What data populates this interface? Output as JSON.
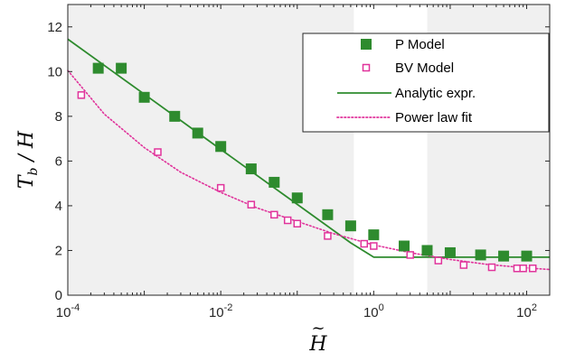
{
  "chart_data": {
    "type": "scatter",
    "xscale": "log",
    "xlim": [
      0.0001,
      200
    ],
    "ylim": [
      0,
      13
    ],
    "xlabel": "H̃",
    "ylabel": "T̃_b / H̃",
    "xlabel_display": {
      "base": "H",
      "accent": "~"
    },
    "ylabel_display": {
      "t": "T",
      "sub": "b",
      "h": "H"
    },
    "x_ticks": [
      {
        "value": 0.0001,
        "base": "10",
        "exp": "-4"
      },
      {
        "value": 0.01,
        "base": "10",
        "exp": "-2"
      },
      {
        "value": 1,
        "base": "10",
        "exp": "0"
      },
      {
        "value": 100,
        "base": "10",
        "exp": "2"
      }
    ],
    "y_ticks": [
      0,
      2,
      4,
      6,
      8,
      10,
      12
    ],
    "shaded_regions": [
      {
        "x0": 0.0001,
        "x1": 0.55,
        "color": "#f0f0f0"
      },
      {
        "x0": 5,
        "x1": 200,
        "color": "#f0f0f0"
      }
    ],
    "legend_position": "top-right",
    "series": [
      {
        "name": "P Model",
        "style": "filled-square",
        "color": "#2e8b2e",
        "x": [
          0.00025,
          0.0005,
          0.001,
          0.0025,
          0.005,
          0.01,
          0.025,
          0.05,
          0.1,
          0.25,
          0.5,
          1,
          2.5,
          5,
          10,
          25,
          50,
          100
        ],
        "y": [
          10.15,
          10.15,
          8.85,
          8.0,
          7.25,
          6.65,
          5.65,
          5.05,
          4.35,
          3.6,
          3.1,
          2.7,
          2.2,
          2.0,
          1.9,
          1.8,
          1.75,
          1.75
        ]
      },
      {
        "name": "BV Model",
        "style": "open-square",
        "color": "#e0339b",
        "x": [
          0.00015,
          0.0015,
          0.01,
          0.025,
          0.05,
          0.075,
          0.1,
          0.25,
          0.75,
          1,
          3,
          7,
          15,
          35,
          75,
          90,
          120
        ],
        "y": [
          8.95,
          6.4,
          4.8,
          4.05,
          3.6,
          3.35,
          3.2,
          2.65,
          2.3,
          2.2,
          1.8,
          1.55,
          1.35,
          1.25,
          1.2,
          1.2,
          1.2
        ]
      },
      {
        "name": "Analytic expr.",
        "style": "solid-line",
        "color": "#2e8b2e",
        "x": [
          0.0001,
          0.001,
          0.01,
          0.1,
          0.5,
          1,
          10,
          200
        ],
        "y": [
          11.45,
          8.99,
          6.52,
          4.06,
          2.34,
          1.7,
          1.7,
          1.7
        ]
      },
      {
        "name": "Power law fit",
        "style": "dotted-line",
        "color": "#e0339b",
        "x": [
          0.0001,
          0.0003,
          0.001,
          0.003,
          0.01,
          0.03,
          0.1,
          0.3,
          1,
          3,
          10,
          30,
          100,
          200
        ],
        "y": [
          10.05,
          8.1,
          6.6,
          5.5,
          4.6,
          3.9,
          3.3,
          2.75,
          2.25,
          1.9,
          1.6,
          1.38,
          1.22,
          1.15
        ]
      }
    ]
  }
}
